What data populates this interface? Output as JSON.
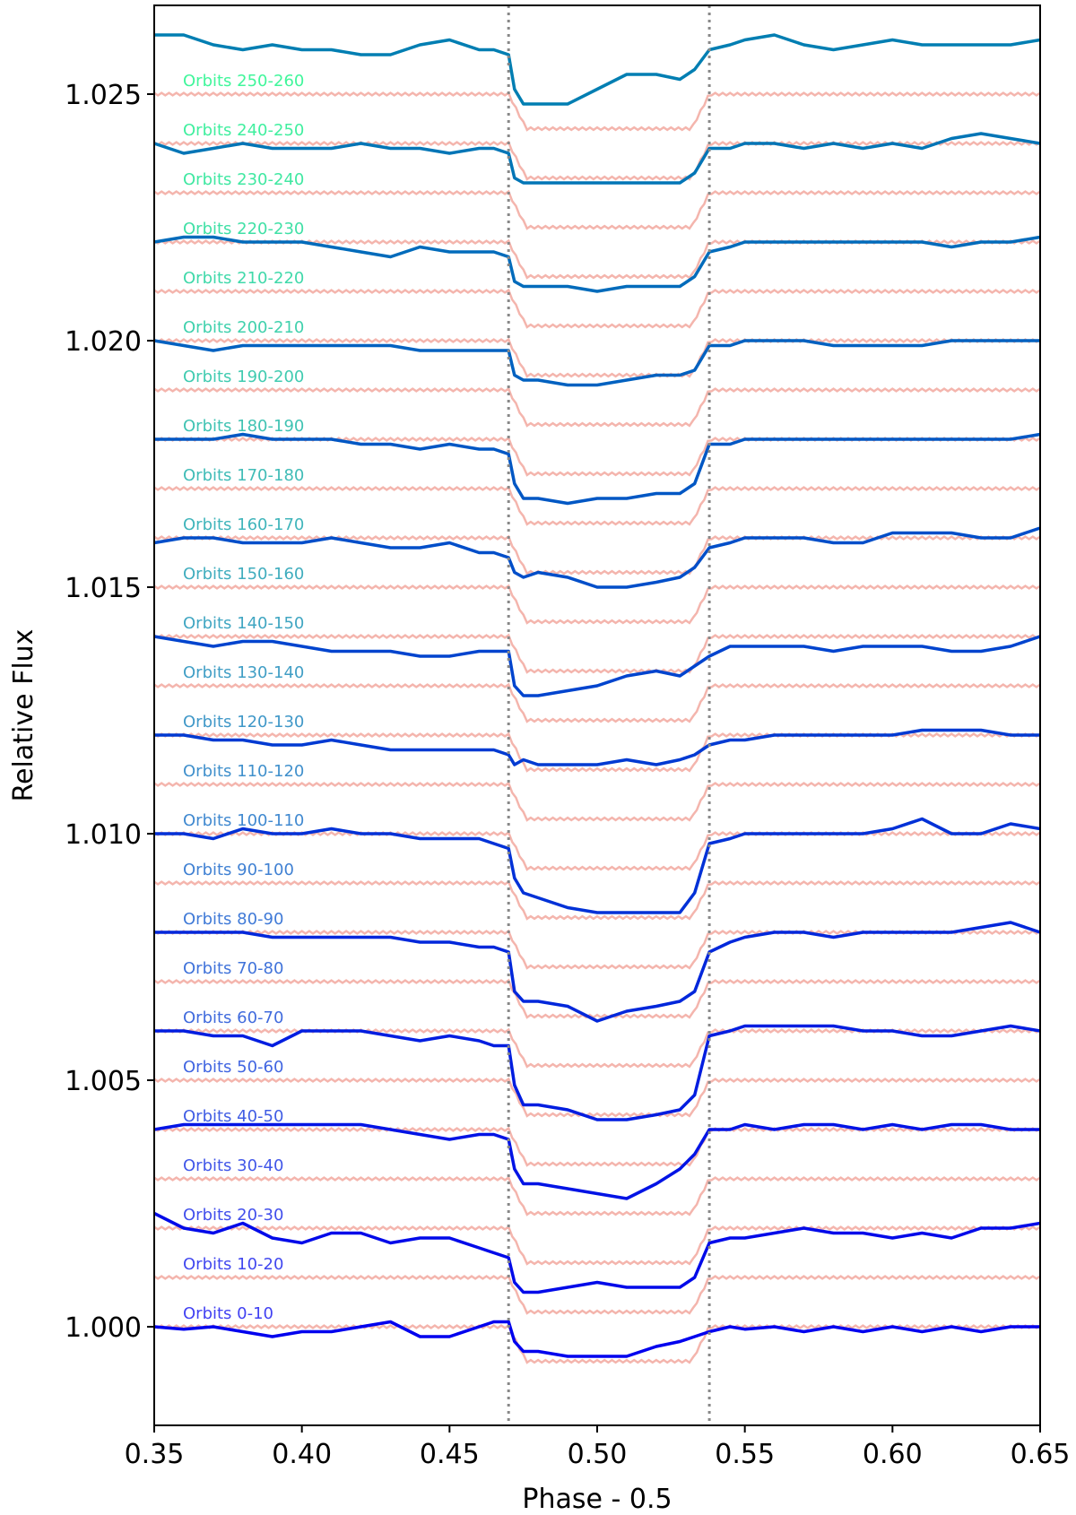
{
  "chart_data": {
    "type": "line",
    "title": "",
    "xlabel": "Phase - 0.5",
    "ylabel": "Relative Flux",
    "xlim": [
      0.35,
      0.65
    ],
    "ylim": [
      0.998,
      1.0268
    ],
    "x_ticks": [
      "0.35",
      "0.40",
      "0.45",
      "0.50",
      "0.55",
      "0.60",
      "0.65"
    ],
    "y_ticks": [
      "1.000",
      "1.005",
      "1.010",
      "1.015",
      "1.020",
      "1.025"
    ],
    "grid": false,
    "legend": "labels drawn inline, left of each curve",
    "vertical_markers": [
      0.47,
      0.538
    ],
    "vertical_marker_color": "#888888",
    "model_color": "#f4b5ad",
    "color_start": "#0000ee",
    "color_end": "#00f37a",
    "series_offset_step": 0.001,
    "x": [
      0.35,
      0.36,
      0.37,
      0.38,
      0.39,
      0.4,
      0.41,
      0.42,
      0.43,
      0.44,
      0.45,
      0.46,
      0.465,
      0.47,
      0.472,
      0.475,
      0.48,
      0.49,
      0.5,
      0.51,
      0.52,
      0.528,
      0.533,
      0.538,
      0.545,
      0.55,
      0.56,
      0.57,
      0.58,
      0.59,
      0.6,
      0.61,
      0.62,
      0.63,
      0.64,
      0.65
    ],
    "series": [
      {
        "name": "Orbits 0-10",
        "values": [
          0.0,
          -5e-05,
          0.0,
          -0.0001,
          -0.0002,
          -0.0001,
          -0.0001,
          0.0,
          0.0001,
          -0.0002,
          -0.0002,
          0.0,
          0.0001,
          0.0001,
          -0.0003,
          -0.0005,
          -0.0005,
          -0.0006,
          -0.0006,
          -0.0006,
          -0.0004,
          -0.0003,
          -0.0002,
          -0.0001,
          0.0,
          -5e-05,
          0.0,
          -0.0001,
          0.0,
          -0.0001,
          0.0,
          -0.0001,
          0.0,
          -0.0001,
          0.0,
          0.0
        ]
      },
      {
        "name": "Orbits 10-20",
        "values": [
          0.0013,
          0.001,
          0.0009,
          0.0011,
          0.0008,
          0.0007,
          0.0009,
          0.0009,
          0.0007,
          0.0008,
          0.0008,
          0.0006,
          0.0005,
          0.0004,
          -0.0001,
          -0.0003,
          -0.0003,
          -0.0002,
          -0.0001,
          -0.0002,
          -0.0002,
          -0.0002,
          0.0,
          0.0007,
          0.0008,
          0.0008,
          0.0009,
          0.001,
          0.0009,
          0.0009,
          0.0008,
          0.0009,
          0.0008,
          0.001,
          0.001,
          0.0011
        ]
      },
      {
        "name": "Orbits 20-30",
        "values": [
          0.002,
          0.0021,
          0.0021,
          0.0021,
          0.0021,
          0.0021,
          0.0021,
          0.0021,
          0.002,
          0.0019,
          0.0018,
          0.0019,
          0.0019,
          0.0018,
          0.0012,
          0.0009,
          0.0009,
          0.0008,
          0.0007,
          0.0006,
          0.0009,
          0.0012,
          0.0015,
          0.002,
          0.002,
          0.0021,
          0.002,
          0.0021,
          0.0021,
          0.002,
          0.0021,
          0.002,
          0.0021,
          0.0021,
          0.002,
          0.002
        ]
      },
      {
        "name": "Orbits 30-40",
        "values": [
          0.003,
          0.003,
          0.0029,
          0.0029,
          0.0027,
          0.003,
          0.003,
          0.003,
          0.0029,
          0.0028,
          0.0029,
          0.0028,
          0.0027,
          0.0027,
          0.0019,
          0.0015,
          0.0015,
          0.0014,
          0.0012,
          0.0012,
          0.0013,
          0.0014,
          0.0017,
          0.0029,
          0.003,
          0.0031,
          0.0031,
          0.0031,
          0.0031,
          0.003,
          0.003,
          0.0029,
          0.0029,
          0.003,
          0.0031,
          0.003
        ]
      },
      {
        "name": "Orbits 40-50",
        "values": [
          0.004,
          0.004,
          0.004,
          0.004,
          0.0039,
          0.0039,
          0.0039,
          0.0039,
          0.0039,
          0.0038,
          0.0038,
          0.0037,
          0.0037,
          0.0036,
          0.0028,
          0.0026,
          0.0026,
          0.0025,
          0.0022,
          0.0024,
          0.0025,
          0.0026,
          0.0028,
          0.0036,
          0.0038,
          0.0039,
          0.004,
          0.004,
          0.0039,
          0.004,
          0.004,
          0.004,
          0.004,
          0.0041,
          0.0042,
          0.004
        ]
      },
      {
        "name": "Orbits 50-60",
        "values": [
          0.005,
          0.005,
          0.0049,
          0.0051,
          0.005,
          0.005,
          0.0051,
          0.005,
          0.005,
          0.0049,
          0.0049,
          0.0049,
          0.0048,
          0.0047,
          0.0041,
          0.0038,
          0.0037,
          0.0035,
          0.0034,
          0.0034,
          0.0034,
          0.0034,
          0.0038,
          0.0048,
          0.0049,
          0.005,
          0.005,
          0.005,
          0.005,
          0.005,
          0.0051,
          0.0053,
          0.005,
          0.005,
          0.0052,
          0.0051
        ]
      },
      {
        "name": "Orbits 60-70",
        "values": [
          0.006,
          0.006,
          0.0059,
          0.0059,
          0.0058,
          0.0058,
          0.0059,
          0.0058,
          0.0057,
          0.0057,
          0.0057,
          0.0057,
          0.0057,
          0.0056,
          0.0054,
          0.0055,
          0.0054,
          0.0054,
          0.0054,
          0.0055,
          0.0054,
          0.0055,
          0.0056,
          0.0058,
          0.0059,
          0.0059,
          0.006,
          0.006,
          0.006,
          0.006,
          0.006,
          0.0061,
          0.0061,
          0.0061,
          0.006,
          0.006
        ]
      },
      {
        "name": "Orbits 70-80",
        "values": [
          0.007,
          0.0069,
          0.0068,
          0.0069,
          0.0069,
          0.0068,
          0.0067,
          0.0067,
          0.0067,
          0.0066,
          0.0066,
          0.0067,
          0.0067,
          0.0067,
          0.006,
          0.0058,
          0.0058,
          0.0059,
          0.006,
          0.0062,
          0.0063,
          0.0062,
          0.0064,
          0.0066,
          0.0068,
          0.0068,
          0.0068,
          0.0068,
          0.0067,
          0.0068,
          0.0068,
          0.0068,
          0.0067,
          0.0067,
          0.0068,
          0.007
        ]
      },
      {
        "name": "Orbits 80-90",
        "values": [
          0.0079,
          0.008,
          0.008,
          0.0079,
          0.0079,
          0.0079,
          0.008,
          0.0079,
          0.0078,
          0.0078,
          0.0079,
          0.0077,
          0.0077,
          0.0076,
          0.0073,
          0.0072,
          0.0073,
          0.0072,
          0.007,
          0.007,
          0.0071,
          0.0072,
          0.0074,
          0.0078,
          0.0079,
          0.008,
          0.008,
          0.008,
          0.0079,
          0.0079,
          0.0081,
          0.0081,
          0.0081,
          0.008,
          0.008,
          0.0082
        ]
      },
      {
        "name": "Orbits 90-100",
        "values": [
          0.009,
          0.009,
          0.009,
          0.0091,
          0.009,
          0.009,
          0.009,
          0.0089,
          0.0089,
          0.0088,
          0.0089,
          0.0088,
          0.0088,
          0.0087,
          0.0081,
          0.0078,
          0.0078,
          0.0077,
          0.0078,
          0.0078,
          0.0079,
          0.0079,
          0.0081,
          0.0089,
          0.0089,
          0.009,
          0.009,
          0.009,
          0.009,
          0.009,
          0.009,
          0.009,
          0.009,
          0.009,
          0.009,
          0.0091
        ]
      },
      {
        "name": "Orbits 100-110",
        "values": [
          0.01,
          0.0099,
          0.0098,
          0.0099,
          0.0099,
          0.0099,
          0.0099,
          0.0099,
          0.0099,
          0.0098,
          0.0098,
          0.0098,
          0.0098,
          0.0098,
          0.0093,
          0.0092,
          0.0092,
          0.0091,
          0.0091,
          0.0092,
          0.0093,
          0.0093,
          0.0094,
          0.0099,
          0.0099,
          0.01,
          0.01,
          0.01,
          0.0099,
          0.0099,
          0.0099,
          0.0099,
          0.01,
          0.01,
          0.01,
          0.01
        ]
      },
      {
        "name": "Orbits 110-120",
        "values": [
          0.011,
          0.0111,
          0.0111,
          0.011,
          0.011,
          0.011,
          0.0109,
          0.0108,
          0.0107,
          0.0109,
          0.0108,
          0.0108,
          0.0108,
          0.0107,
          0.0102,
          0.0101,
          0.0101,
          0.0101,
          0.01,
          0.0101,
          0.0101,
          0.0101,
          0.0103,
          0.0108,
          0.0109,
          0.011,
          0.011,
          0.011,
          0.011,
          0.011,
          0.011,
          0.011,
          0.0109,
          0.011,
          0.011,
          0.0111
        ]
      },
      {
        "name": "Orbits 120-130",
        "values": [
          0.012,
          0.0118,
          0.0119,
          0.012,
          0.0119,
          0.0119,
          0.0119,
          0.012,
          0.0119,
          0.0119,
          0.0118,
          0.0119,
          0.0119,
          0.0118,
          0.0113,
          0.0112,
          0.0112,
          0.0112,
          0.0112,
          0.0112,
          0.0112,
          0.0112,
          0.0114,
          0.0119,
          0.0119,
          0.012,
          0.012,
          0.0119,
          0.012,
          0.0119,
          0.012,
          0.0119,
          0.0121,
          0.0122,
          0.0121,
          0.012
        ]
      },
      {
        "name": "Orbits 130-140",
        "values": [
          0.0132,
          0.0132,
          0.013,
          0.0129,
          0.013,
          0.0129,
          0.0129,
          0.0128,
          0.0128,
          0.013,
          0.0131,
          0.0129,
          0.0129,
          0.0128,
          0.0121,
          0.0118,
          0.0118,
          0.0118,
          0.0121,
          0.0124,
          0.0124,
          0.0123,
          0.0125,
          0.0129,
          0.013,
          0.0131,
          0.0132,
          0.013,
          0.0129,
          0.013,
          0.0131,
          0.013,
          0.013,
          0.013,
          0.013,
          0.0131
        ]
      },
      {
        "name": "Orbits 140-150",
        "values": [
          0.014,
          0.0141,
          0.0141,
          0.014,
          0.014,
          0.014,
          0.014,
          0.0139,
          0.0138,
          0.0138,
          0.0138,
          0.0138,
          0.0138,
          0.0137,
          0.0132,
          0.0131,
          0.0131,
          0.0131,
          0.0131,
          0.0131,
          0.0131,
          0.0131,
          0.0134,
          0.0139,
          0.014,
          0.014,
          0.014,
          0.014,
          0.014,
          0.014,
          0.014,
          0.014,
          0.0141,
          0.014,
          0.014,
          0.014
        ]
      },
      {
        "name": "Orbits 150-160",
        "values": [
          0.0151,
          0.0149,
          0.0148,
          0.0149,
          0.015,
          0.0149,
          0.0151,
          0.0148,
          0.0149,
          0.0149,
          0.0149,
          0.0149,
          0.0149,
          0.0147,
          0.0142,
          0.014,
          0.014,
          0.0141,
          0.0141,
          0.0141,
          0.0142,
          0.0142,
          0.0144,
          0.0148,
          0.0149,
          0.015,
          0.015,
          0.015,
          0.015,
          0.015,
          0.0151,
          0.015,
          0.015,
          0.015,
          0.0151,
          0.0151
        ]
      },
      {
        "name": "Orbits 160-170",
        "values": [
          0.016,
          0.0161,
          0.0161,
          0.016,
          0.0161,
          0.0161,
          0.016,
          0.016,
          0.016,
          0.0159,
          0.0159,
          0.0159,
          0.0159,
          0.0158,
          0.0153,
          0.0152,
          0.0152,
          0.0153,
          0.0154,
          0.0154,
          0.0153,
          0.0153,
          0.0155,
          0.0159,
          0.0159,
          0.016,
          0.016,
          0.016,
          0.016,
          0.016,
          0.016,
          0.016,
          0.016,
          0.016,
          0.016,
          0.016
        ]
      },
      {
        "name": "Orbits 170-180",
        "values": [
          0.0172,
          0.0172,
          0.017,
          0.017,
          0.017,
          0.0169,
          0.0169,
          0.0169,
          0.0169,
          0.0168,
          0.0167,
          0.0168,
          0.0167,
          0.0167,
          0.0164,
          0.0164,
          0.0164,
          0.0164,
          0.0163,
          0.0164,
          0.0164,
          0.0165,
          0.0166,
          0.017,
          0.0171,
          0.0171,
          0.0171,
          0.0172,
          0.0172,
          0.0172,
          0.0172,
          0.0172,
          0.0172,
          0.0173,
          0.0173,
          0.0174
        ]
      },
      {
        "name": "Orbits 180-190",
        "values": [
          0.018,
          0.018,
          0.0179,
          0.018,
          0.0181,
          0.018,
          0.018,
          0.018,
          0.0179,
          0.0179,
          0.0178,
          0.0178,
          0.0178,
          0.0178,
          0.0174,
          0.0173,
          0.0173,
          0.0173,
          0.0174,
          0.0173,
          0.0174,
          0.0174,
          0.0175,
          0.0178,
          0.0179,
          0.0179,
          0.018,
          0.018,
          0.018,
          0.018,
          0.0181,
          0.018,
          0.0179,
          0.018,
          0.018,
          0.018
        ]
      },
      {
        "name": "Orbits 190-200",
        "values": [
          0.0191,
          0.019,
          0.019,
          0.019,
          0.019,
          0.0189,
          0.019,
          0.0189,
          0.0189,
          0.0189,
          0.019,
          0.0189,
          0.0189,
          0.0188,
          0.0184,
          0.0183,
          0.0183,
          0.0184,
          0.0186,
          0.0186,
          0.0184,
          0.0185,
          0.0187,
          0.0189,
          0.019,
          0.019,
          0.019,
          0.019,
          0.019,
          0.019,
          0.019,
          0.019,
          0.019,
          0.0189,
          0.019,
          0.019
        ]
      },
      {
        "name": "Orbits 200-210",
        "values": [
          0.02,
          0.0199,
          0.02,
          0.02,
          0.0199,
          0.0198,
          0.0199,
          0.02,
          0.0199,
          0.0199,
          0.0199,
          0.0199,
          0.0199,
          0.0198,
          0.0194,
          0.0193,
          0.0193,
          0.0192,
          0.0193,
          0.0193,
          0.0193,
          0.0194,
          0.0195,
          0.0199,
          0.0199,
          0.02,
          0.0199,
          0.02,
          0.02,
          0.0199,
          0.02,
          0.0199,
          0.02,
          0.0199,
          0.02,
          0.02
        ]
      },
      {
        "name": "Orbits 210-220",
        "values": [
          0.021,
          0.0211,
          0.0211,
          0.0211,
          0.021,
          0.0211,
          0.0211,
          0.0212,
          0.021,
          0.021,
          0.0211,
          0.021,
          0.021,
          0.0209,
          0.0205,
          0.0204,
          0.0204,
          0.0205,
          0.0205,
          0.0205,
          0.0205,
          0.0205,
          0.0206,
          0.0209,
          0.021,
          0.021,
          0.021,
          0.021,
          0.0211,
          0.021,
          0.021,
          0.0211,
          0.021,
          0.0212,
          0.0212,
          0.0211
        ]
      },
      {
        "name": "Orbits 220-230",
        "values": [
          0.0222,
          0.0221,
          0.0221,
          0.0221,
          0.022,
          0.022,
          0.0221,
          0.022,
          0.022,
          0.022,
          0.022,
          0.022,
          0.022,
          0.0219,
          0.0216,
          0.0215,
          0.0215,
          0.0214,
          0.0215,
          0.0216,
          0.0217,
          0.0217,
          0.0218,
          0.022,
          0.0221,
          0.0221,
          0.0221,
          0.022,
          0.0221,
          0.022,
          0.0221,
          0.0222,
          0.0221,
          0.0222,
          0.0221,
          0.0221
        ]
      },
      {
        "name": "Orbits 230-240",
        "values": [
          0.0229,
          0.0229,
          0.023,
          0.023,
          0.0229,
          0.023,
          0.0231,
          0.0229,
          0.0229,
          0.0228,
          0.0228,
          0.0229,
          0.0229,
          0.0228,
          0.0225,
          0.0224,
          0.0224,
          0.0224,
          0.0223,
          0.0223,
          0.0224,
          0.0226,
          0.0227,
          0.0229,
          0.023,
          0.0229,
          0.023,
          0.023,
          0.023,
          0.0229,
          0.023,
          0.023,
          0.0231,
          0.023,
          0.0231,
          0.0232
        ]
      },
      {
        "name": "Orbits 240-250",
        "values": [
          0.0242,
          0.0241,
          0.024,
          0.024,
          0.024,
          0.024,
          0.024,
          0.0239,
          0.0239,
          0.0239,
          0.0239,
          0.0239,
          0.0239,
          0.0238,
          0.0233,
          0.0233,
          0.0233,
          0.0232,
          0.0231,
          0.0231,
          0.0233,
          0.0236,
          0.0238,
          0.024,
          0.024,
          0.024,
          0.024,
          0.024,
          0.024,
          0.024,
          0.024,
          0.0241,
          0.0241,
          0.0241,
          0.0241,
          0.0242
        ]
      },
      {
        "name": "Orbits 250-260",
        "values": [
          0.0249,
          0.0249,
          0.0249,
          0.025,
          0.025,
          0.025,
          0.0249,
          0.0249,
          0.025,
          0.025,
          0.025,
          0.0249,
          0.0249,
          0.0249,
          0.0245,
          0.0245,
          0.0245,
          0.0245,
          0.0244,
          0.0242,
          0.0243,
          0.0245,
          0.0249,
          0.025,
          0.025,
          0.0249,
          0.025,
          0.0251,
          0.0251,
          0.025,
          0.0251,
          0.0252,
          0.0253,
          0.0252,
          0.0251,
          0.0252
        ]
      }
    ]
  }
}
